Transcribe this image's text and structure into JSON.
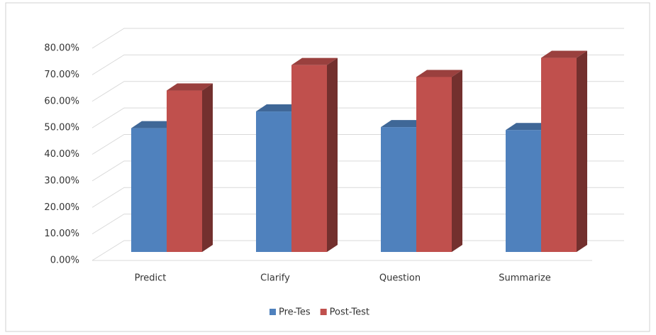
{
  "chart_data": {
    "type": "bar3d",
    "categories": [
      "Predict",
      "Clarify",
      "Question",
      "Summarize"
    ],
    "series": [
      {
        "name": "Pre-Tes",
        "color": "#4f81bd",
        "values": [
          48,
          54.3,
          48.4,
          47.3
        ]
      },
      {
        "name": "Post-Test",
        "color": "#c0504d",
        "values": [
          62.2,
          71.8,
          67.3,
          74.5
        ]
      }
    ],
    "ylim": [
      0,
      80
    ],
    "yticks": [
      {
        "value": 0,
        "label": "0.00%"
      },
      {
        "value": 10,
        "label": "10.00%"
      },
      {
        "value": 20,
        "label": "20.00%"
      },
      {
        "value": 30,
        "label": "30.00%"
      },
      {
        "value": 40,
        "label": "40.00%"
      },
      {
        "value": 50,
        "label": "50.00%"
      },
      {
        "value": 60,
        "label": "60.00%"
      },
      {
        "value": 70,
        "label": "70.00%"
      },
      {
        "value": 80,
        "label": "80.00%"
      }
    ],
    "grid": true,
    "legend": "bottom"
  }
}
